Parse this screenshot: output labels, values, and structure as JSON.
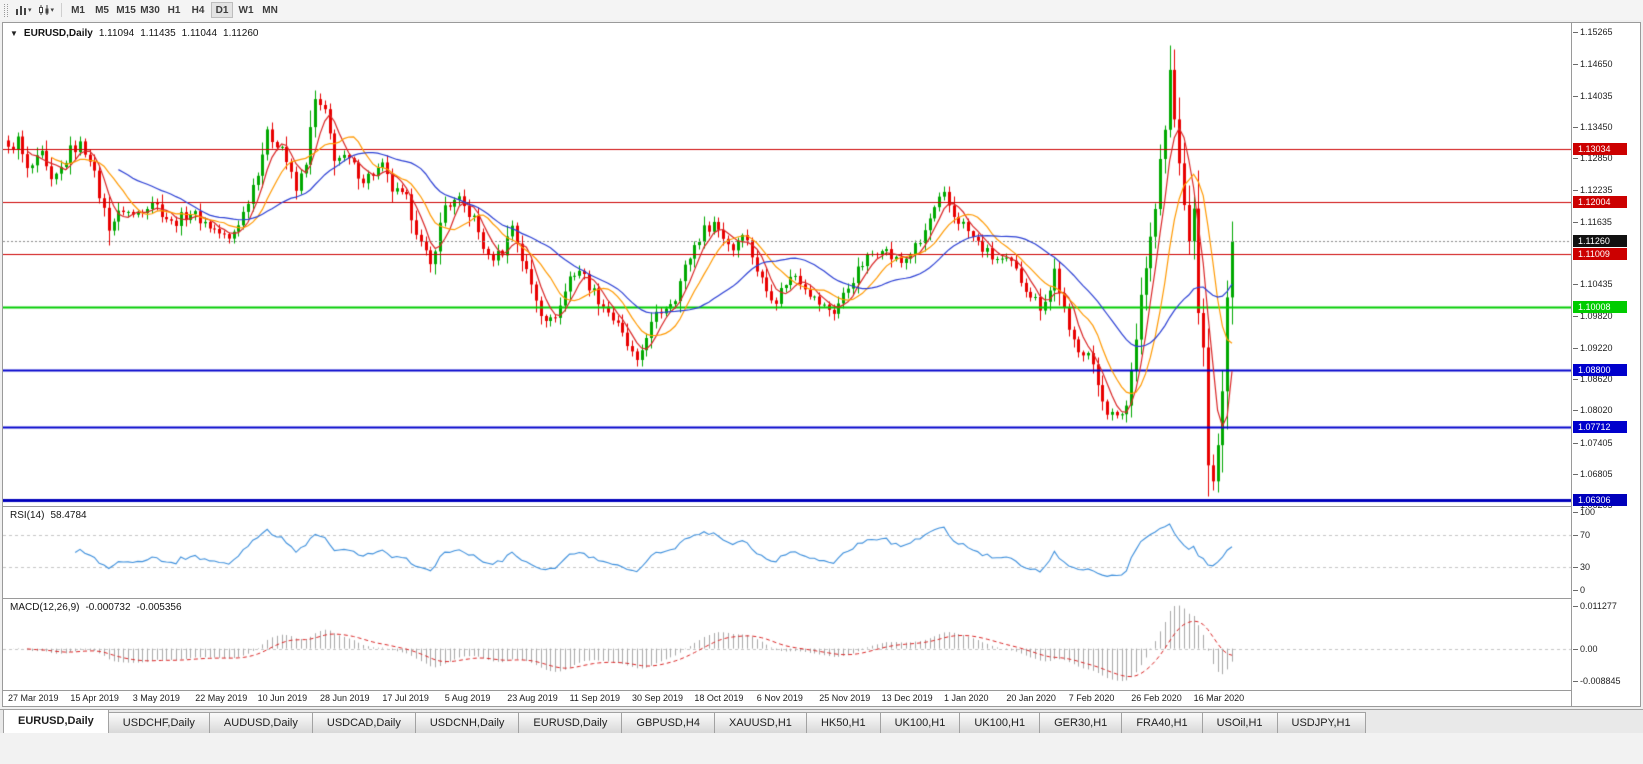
{
  "icons": {
    "collapse_glyph": "▼",
    "caret_down_glyph": "▾"
  },
  "toolbar": {
    "timeframes": [
      "M1",
      "M5",
      "M15",
      "M30",
      "H1",
      "H4",
      "D1",
      "W1",
      "MN"
    ],
    "active_timeframe": "D1"
  },
  "header": {
    "symbol": "EURUSD,Daily",
    "open": "1.11094",
    "high": "1.11435",
    "low": "1.11044",
    "close": "1.11260"
  },
  "price_axis_ticks": [
    "1.15265",
    "1.14650",
    "1.14035",
    "1.13450",
    "1.12850",
    "1.12235",
    "1.11635",
    "1.10435",
    "1.09820",
    "1.09220",
    "1.08620",
    "1.08020",
    "1.07405",
    "1.06805",
    "1.06205"
  ],
  "rsi_panel": {
    "title": "RSI(14)",
    "value": "58.4784",
    "axis": [
      "100",
      "70",
      "30",
      "0"
    ]
  },
  "macd_panel": {
    "title": "MACD(12,26,9)",
    "value_main": "-0.000732",
    "value_signal": "-0.005356",
    "axis": [
      "0.011277",
      "0.00",
      "-0.008845"
    ]
  },
  "time_axis": [
    "27 Mar 2019",
    "15 Apr 2019",
    "3 May 2019",
    "22 May 2019",
    "10 Jun 2019",
    "28 Jun 2019",
    "17 Jul 2019",
    "5 Aug 2019",
    "23 Aug 2019",
    "11 Sep 2019",
    "30 Sep 2019",
    "18 Oct 2019",
    "6 Nov 2019",
    "25 Nov 2019",
    "13 Dec 2019",
    "1 Jan 2020",
    "20 Jan 2020",
    "7 Feb 2020",
    "26 Feb 2020",
    "16 Mar 2020"
  ],
  "tabs": {
    "active_index": 0,
    "items": [
      "EURUSD,Daily",
      "USDCHF,Daily",
      "AUDUSD,Daily",
      "USDCAD,Daily",
      "USDCNH,Daily",
      "EURUSD,Daily",
      "GBPUSD,H4",
      "XAUUSD,H1",
      "HK50,H1",
      "UK100,H1",
      "UK100,H1",
      "GER30,H1",
      "FRA40,H1",
      "USOil,H1",
      "USDJPY,H1"
    ],
    "note": ""
  },
  "chart_data": {
    "type": "candlestick",
    "symbol": "EURUSD",
    "timeframe": "Daily",
    "num_candles": 256,
    "candles_per_label": 13,
    "price_range": {
      "min": 1.0619,
      "max": 1.1544
    },
    "up_color": "#00a800",
    "down_color": "#e80000",
    "anchors": [
      [
        0,
        1.13
      ],
      [
        2,
        1.132
      ],
      [
        4,
        1.126
      ],
      [
        7,
        1.129
      ],
      [
        9,
        1.1235
      ],
      [
        11,
        1.1265
      ],
      [
        13,
        1.13
      ],
      [
        15,
        1.131
      ],
      [
        17,
        1.1288
      ],
      [
        19,
        1.1215
      ],
      [
        21,
        1.1155
      ],
      [
        24,
        1.1188
      ],
      [
        26,
        1.1175
      ],
      [
        30,
        1.1205
      ],
      [
        34,
        1.116
      ],
      [
        38,
        1.1182
      ],
      [
        42,
        1.1155
      ],
      [
        46,
        1.1128
      ],
      [
        49,
        1.118
      ],
      [
        52,
        1.1262
      ],
      [
        54,
        1.133
      ],
      [
        57,
        1.1308
      ],
      [
        60,
        1.1222
      ],
      [
        62,
        1.128
      ],
      [
        64,
        1.1395
      ],
      [
        66,
        1.137
      ],
      [
        68,
        1.1288
      ],
      [
        71,
        1.128
      ],
      [
        74,
        1.1245
      ],
      [
        78,
        1.1268
      ],
      [
        80,
        1.1225
      ],
      [
        83,
        1.1205
      ],
      [
        86,
        1.112
      ],
      [
        88,
        1.1078
      ],
      [
        91,
        1.1195
      ],
      [
        94,
        1.1202
      ],
      [
        97,
        1.1168
      ],
      [
        100,
        1.1092
      ],
      [
        103,
        1.1108
      ],
      [
        105,
        1.1158
      ],
      [
        107,
        1.1092
      ],
      [
        109,
        1.1042
      ],
      [
        111,
        1.0992
      ],
      [
        113,
        1.0972
      ],
      [
        115,
        1.1002
      ],
      [
        117,
        1.1058
      ],
      [
        119,
        1.1072
      ],
      [
        121,
        1.1042
      ],
      [
        123,
        1.1015
      ],
      [
        125,
        1.0992
      ],
      [
        127,
        1.0962
      ],
      [
        130,
        1.0908
      ],
      [
        131,
        1.0888
      ],
      [
        133,
        1.0948
      ],
      [
        135,
        1.0982
      ],
      [
        137,
        1.1002
      ],
      [
        139,
        1.1022
      ],
      [
        141,
        1.1075
      ],
      [
        143,
        1.1118
      ],
      [
        145,
        1.1148
      ],
      [
        147,
        1.1162
      ],
      [
        149,
        1.1135
      ],
      [
        151,
        1.1112
      ],
      [
        153,
        1.1148
      ],
      [
        155,
        1.11
      ],
      [
        156,
        1.1072
      ],
      [
        158,
        1.1032
      ],
      [
        160,
        1.1015
      ],
      [
        162,
        1.1048
      ],
      [
        164,
        1.1062
      ],
      [
        166,
        1.1042
      ],
      [
        168,
        1.1015
      ],
      [
        170,
        1.1
      ],
      [
        172,
        1.0992
      ],
      [
        174,
        1.1022
      ],
      [
        176,
        1.1055
      ],
      [
        178,
        1.1082
      ],
      [
        180,
        1.1102
      ],
      [
        182,
        1.1118
      ],
      [
        184,
        1.1095
      ],
      [
        186,
        1.1085
      ],
      [
        188,
        1.1105
      ],
      [
        190,
        1.1122
      ],
      [
        192,
        1.1168
      ],
      [
        194,
        1.1202
      ],
      [
        195,
        1.1212
      ],
      [
        197,
        1.1175
      ],
      [
        199,
        1.1158
      ],
      [
        201,
        1.1132
      ],
      [
        203,
        1.1112
      ],
      [
        205,
        1.1095
      ],
      [
        207,
        1.1088
      ],
      [
        209,
        1.1082
      ],
      [
        211,
        1.1052
      ],
      [
        213,
        1.1025
      ],
      [
        215,
        1.1002
      ],
      [
        217,
        1.1032
      ],
      [
        218,
        1.1072
      ],
      [
        220,
        1.0992
      ],
      [
        221,
        1.0948
      ],
      [
        223,
        1.0922
      ],
      [
        225,
        1.0912
      ],
      [
        227,
        1.0852
      ],
      [
        229,
        1.0802
      ],
      [
        231,
        1.0785
      ],
      [
        233,
        1.0812
      ],
      [
        234,
        1.0878
      ],
      [
        235,
        1.0948
      ],
      [
        236,
        1.1025
      ],
      [
        237,
        1.1078
      ],
      [
        238,
        1.1132
      ],
      [
        239,
        1.1188
      ],
      [
        240,
        1.1278
      ],
      [
        241,
        1.1338
      ],
      [
        242,
        1.1452
      ],
      [
        243,
        1.1358
      ],
      [
        244,
        1.1282
      ],
      [
        245,
        1.1186
      ],
      [
        246,
        1.1132
      ],
      [
        247,
        1.1182
      ],
      [
        248,
        1.0998
      ],
      [
        249,
        1.0915
      ],
      [
        250,
        1.0692
      ],
      [
        251,
        1.0668
      ],
      [
        252,
        1.0725
      ],
      [
        253,
        1.0848
      ],
      [
        254,
        1.1028
      ],
      [
        255,
        1.1126
      ]
    ],
    "levels": [
      {
        "price": 1.13034,
        "label": "1.13034",
        "color": "#cc0000",
        "width": 1
      },
      {
        "price": 1.12004,
        "label": "1.12004",
        "color": "#cc0000",
        "width": 1
      },
      {
        "price": 1.11009,
        "label": "1.11009",
        "color": "#cc0000",
        "width": 1
      },
      {
        "price": 1.10008,
        "label": "1.10008",
        "color": "#00cc00",
        "width": 2
      },
      {
        "price": 1.088,
        "label": "1.08800",
        "color": "#0000cc",
        "width": 2
      },
      {
        "price": 1.07712,
        "label": "1.07712",
        "color": "#0000cc",
        "width": 2
      },
      {
        "price": 1.06306,
        "label": "1.06306",
        "color": "#0000bb",
        "width": 3
      }
    ],
    "current_price": {
      "value": 1.1126,
      "label": "1.11260",
      "tag_color": "#111111"
    },
    "moving_averages": [
      {
        "period": 5,
        "color": "#d92525"
      },
      {
        "period": 10,
        "color": "#ff9900"
      },
      {
        "period": 24,
        "color": "#2b3fd4"
      }
    ],
    "rsi": {
      "period": 14,
      "color": "#3d8fdc",
      "guide_levels": [
        70,
        30
      ]
    },
    "macd": {
      "hist_color": "#a8a8a8",
      "signal_color": "#d92525"
    }
  }
}
